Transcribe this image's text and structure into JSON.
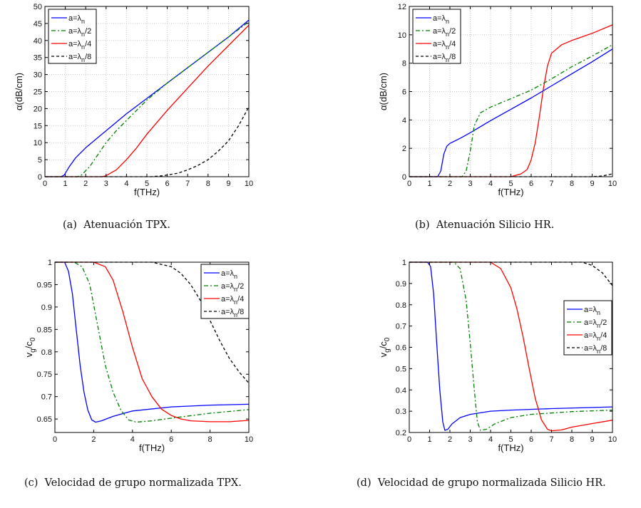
{
  "colors": {
    "blue": "#0000ff",
    "green": "#008000",
    "red": "#ff0000",
    "black": "#000000",
    "grid": "#c8c8c8"
  },
  "legend_labels": [
    "a=λn",
    "a=λn/2",
    "a=λn/4",
    "a=λn/8"
  ],
  "chart_data": [
    {
      "type": "line",
      "caption_tag": "(a)",
      "caption": "Atenuación TPX.",
      "xlabel": "f(THz)",
      "ylabel": "α(dB/cm)",
      "xlim": [
        0,
        10
      ],
      "ylim": [
        0,
        50
      ],
      "xticks": [
        0,
        1,
        2,
        3,
        4,
        5,
        6,
        7,
        8,
        9,
        10
      ],
      "yticks": [
        0,
        5,
        10,
        15,
        20,
        25,
        30,
        35,
        40,
        45,
        50
      ],
      "grid": true,
      "legend_position": "top-left",
      "series": [
        {
          "name": "a=λn",
          "color_key": "blue",
          "dash": "solid",
          "x": [
            0,
            0.8,
            0.95,
            1.2,
            1.5,
            2,
            2.5,
            3,
            4,
            5,
            6,
            7,
            8,
            9,
            10
          ],
          "y": [
            0,
            0,
            0.5,
            3,
            5.5,
            8.5,
            11,
            13.5,
            18.5,
            23,
            27.5,
            32,
            36.5,
            41,
            46
          ]
        },
        {
          "name": "a=λn/2",
          "color_key": "green",
          "dash": "6,3,2,3",
          "x": [
            0,
            1.6,
            1.8,
            2.2,
            2.6,
            3,
            3.5,
            4,
            5,
            6,
            7,
            8,
            9,
            10
          ],
          "y": [
            0,
            0,
            0.5,
            3,
            6.5,
            10,
            13.5,
            16.5,
            22.5,
            27.5,
            32,
            36.5,
            41,
            45.5
          ]
        },
        {
          "name": "a=λn/4",
          "color_key": "red",
          "dash": "solid",
          "x": [
            0,
            2.8,
            3,
            3.5,
            4,
            4.5,
            5,
            6,
            7,
            8,
            9,
            10
          ],
          "y": [
            0,
            0,
            0.3,
            2,
            5,
            8.5,
            12.5,
            19.5,
            26,
            32.5,
            38.5,
            44.5
          ]
        },
        {
          "name": "a=λn/8",
          "color_key": "black",
          "dash": "4,3",
          "x": [
            0,
            5.2,
            5.8,
            6.5,
            7,
            7.5,
            8,
            8.5,
            9,
            9.5,
            10
          ],
          "y": [
            0,
            0,
            0.3,
            1,
            2,
            3.3,
            5,
            7.5,
            10.5,
            15,
            20.5
          ]
        }
      ]
    },
    {
      "type": "line",
      "caption_tag": "(b)",
      "caption": "Atenuación Silicio HR.",
      "xlabel": "f(THz)",
      "ylabel": "α(dB/cm)",
      "xlim": [
        0,
        10
      ],
      "ylim": [
        0,
        12
      ],
      "xticks": [
        0,
        1,
        2,
        3,
        4,
        5,
        6,
        7,
        8,
        9,
        10
      ],
      "yticks": [
        0,
        2,
        4,
        6,
        8,
        10,
        12
      ],
      "grid": true,
      "legend_position": "top-left",
      "series": [
        {
          "name": "a=λn",
          "color_key": "blue",
          "dash": "solid",
          "x": [
            0,
            1.4,
            1.55,
            1.7,
            1.85,
            2,
            2.5,
            3,
            4,
            5,
            6,
            7,
            8,
            9,
            10
          ],
          "y": [
            0,
            0,
            0.4,
            1.6,
            2.15,
            2.35,
            2.7,
            3.1,
            3.95,
            4.75,
            5.55,
            6.4,
            7.25,
            8.1,
            9
          ]
        },
        {
          "name": "a=λn/2",
          "color_key": "green",
          "dash": "6,3,2,3",
          "x": [
            0,
            2.6,
            2.8,
            3,
            3.2,
            3.5,
            4,
            5,
            6,
            7,
            8,
            9,
            10
          ],
          "y": [
            0,
            0,
            0.4,
            1.8,
            3.6,
            4.5,
            4.9,
            5.5,
            6.1,
            6.9,
            7.75,
            8.5,
            9.3
          ]
        },
        {
          "name": "a=λn/4",
          "color_key": "red",
          "dash": "solid",
          "x": [
            0,
            5,
            5.5,
            5.8,
            6,
            6.2,
            6.4,
            6.6,
            6.8,
            7,
            7.5,
            8,
            9,
            10
          ],
          "y": [
            0,
            0,
            0.2,
            0.5,
            1.2,
            2.4,
            4.2,
            6.2,
            7.8,
            8.7,
            9.3,
            9.6,
            10.1,
            10.7
          ]
        },
        {
          "name": "a=λn/8",
          "color_key": "black",
          "dash": "4,3",
          "x": [
            0,
            9,
            9.5,
            10
          ],
          "y": [
            0,
            0,
            0.05,
            0.2
          ]
        }
      ]
    },
    {
      "type": "line",
      "caption_tag": "(c)",
      "caption": "Velocidad de grupo normalizada TPX.",
      "xlabel": "f(THz)",
      "ylabel": "vg/c0",
      "xlim": [
        0,
        10
      ],
      "ylim": [
        0.62,
        1
      ],
      "xticks": [
        0,
        2,
        4,
        6,
        8,
        10
      ],
      "yticks": [
        0.65,
        0.7,
        0.75,
        0.8,
        0.85,
        0.9,
        0.95,
        1
      ],
      "grid": false,
      "legend_position": "top-right",
      "series": [
        {
          "name": "a=λn",
          "color_key": "blue",
          "dash": "solid",
          "x": [
            0,
            0.5,
            0.7,
            0.9,
            1.1,
            1.3,
            1.5,
            1.7,
            1.9,
            2.1,
            2.4,
            3,
            4,
            6,
            8,
            10
          ],
          "y": [
            1,
            1,
            0.98,
            0.93,
            0.85,
            0.77,
            0.71,
            0.67,
            0.648,
            0.643,
            0.646,
            0.656,
            0.668,
            0.677,
            0.681,
            0.683
          ]
        },
        {
          "name": "a=λn/2",
          "color_key": "green",
          "dash": "6,3,2,3",
          "x": [
            0,
            1,
            1.4,
            1.8,
            2.2,
            2.6,
            3,
            3.4,
            3.8,
            4.2,
            5,
            6,
            8,
            10
          ],
          "y": [
            1,
            1,
            0.99,
            0.95,
            0.86,
            0.77,
            0.71,
            0.67,
            0.648,
            0.643,
            0.646,
            0.652,
            0.663,
            0.671
          ]
        },
        {
          "name": "a=λn/4",
          "color_key": "red",
          "dash": "solid",
          "x": [
            0,
            2,
            2.6,
            3,
            3.5,
            4,
            4.5,
            5,
            5.5,
            6,
            6.5,
            7,
            8,
            9,
            10
          ],
          "y": [
            1,
            1,
            0.99,
            0.96,
            0.89,
            0.81,
            0.74,
            0.7,
            0.672,
            0.658,
            0.65,
            0.646,
            0.644,
            0.644,
            0.647
          ]
        },
        {
          "name": "a=λn/8",
          "color_key": "black",
          "dash": "4,3",
          "x": [
            0,
            5,
            6,
            6.5,
            7,
            7.5,
            8,
            8.5,
            9,
            9.5,
            10
          ],
          "y": [
            1,
            1,
            0.99,
            0.975,
            0.95,
            0.915,
            0.87,
            0.825,
            0.785,
            0.755,
            0.73
          ]
        }
      ]
    },
    {
      "type": "line",
      "caption_tag": "(d)",
      "caption": "Velocidad de grupo normalizada Silicio HR.",
      "xlabel": "f(THz)",
      "ylabel": "vg/c0",
      "xlim": [
        0,
        10
      ],
      "ylim": [
        0.2,
        1
      ],
      "xticks": [
        0,
        1,
        2,
        3,
        4,
        5,
        6,
        7,
        8,
        9,
        10
      ],
      "yticks": [
        0.2,
        0.3,
        0.4,
        0.5,
        0.6,
        0.7,
        0.8,
        0.9,
        1
      ],
      "grid": false,
      "legend_position": "right",
      "series": [
        {
          "name": "a=λn",
          "color_key": "blue",
          "dash": "solid",
          "x": [
            0,
            0.9,
            1.05,
            1.2,
            1.35,
            1.5,
            1.65,
            1.75,
            1.9,
            2.1,
            2.5,
            3,
            4,
            5,
            7,
            10
          ],
          "y": [
            1,
            1,
            0.98,
            0.85,
            0.62,
            0.4,
            0.25,
            0.21,
            0.215,
            0.24,
            0.27,
            0.285,
            0.3,
            0.305,
            0.312,
            0.32
          ]
        },
        {
          "name": "a=λn/2",
          "color_key": "green",
          "dash": "6,3,2,3",
          "x": [
            0,
            2.2,
            2.5,
            2.8,
            3,
            3.2,
            3.35,
            3.5,
            3.8,
            4.2,
            5,
            6,
            8,
            10
          ],
          "y": [
            1,
            1,
            0.97,
            0.82,
            0.62,
            0.4,
            0.25,
            0.21,
            0.215,
            0.24,
            0.27,
            0.285,
            0.298,
            0.305
          ]
        },
        {
          "name": "a=λn/4",
          "color_key": "red",
          "dash": "solid",
          "x": [
            0,
            4,
            4.5,
            5,
            5.3,
            5.6,
            5.9,
            6.2,
            6.5,
            6.8,
            7,
            7.5,
            8,
            9,
            10
          ],
          "y": [
            1,
            1,
            0.97,
            0.88,
            0.78,
            0.65,
            0.5,
            0.36,
            0.26,
            0.215,
            0.208,
            0.212,
            0.225,
            0.242,
            0.258
          ]
        },
        {
          "name": "a=λn/8",
          "color_key": "black",
          "dash": "4,3",
          "x": [
            0,
            8.5,
            9,
            9.5,
            10
          ],
          "y": [
            1,
            1,
            0.985,
            0.95,
            0.89
          ]
        }
      ]
    }
  ]
}
